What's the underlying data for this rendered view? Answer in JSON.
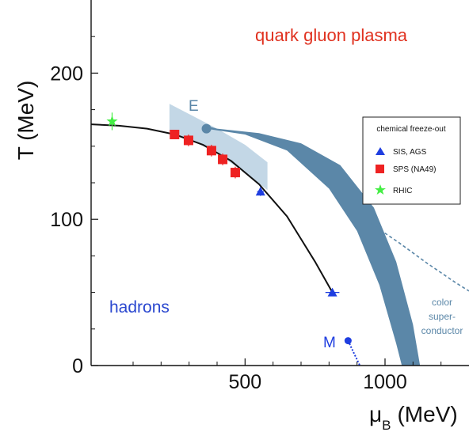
{
  "chart_data": {
    "type": "scatter",
    "title": "",
    "xlabel": "μ",
    "xlabel_sub": "B",
    "xlabel_unit": "(MeV)",
    "ylabel": "T (MeV)",
    "xlim": [
      -50,
      1300
    ],
    "ylim": [
      0,
      250
    ],
    "x_ticks": [
      500,
      1000
    ],
    "x_tick_labels": [
      "500",
      "1000"
    ],
    "y_ticks": [
      0,
      100,
      200
    ],
    "y_tick_labels": [
      "0",
      "100",
      "200"
    ],
    "grid": false,
    "legend": {
      "title": "chemical freeze-out",
      "placement": "right",
      "entries": [
        {
          "label": "SIS, AGS",
          "marker": "triangle",
          "color": "#1f3ee0"
        },
        {
          "label": "SPS (NA49)",
          "marker": "square",
          "color": "#ee2222"
        },
        {
          "label": "RHIC",
          "marker": "star",
          "color": "#44ee44"
        }
      ]
    },
    "series": [
      {
        "label_ref": 0,
        "marker": "triangle",
        "color": "#1f3ee0",
        "points": [
          {
            "x": 555,
            "y": 119,
            "xerr": 12,
            "yerr": 3
          },
          {
            "x": 812,
            "y": 50,
            "xerr": 25,
            "yerr": 2
          }
        ]
      },
      {
        "label_ref": 1,
        "marker": "square",
        "color": "#ee2222",
        "points": [
          {
            "x": 248,
            "y": 158,
            "xerr": 0,
            "yerr": 3
          },
          {
            "x": 298,
            "y": 154,
            "xerr": 0,
            "yerr": 4
          },
          {
            "x": 380,
            "y": 147,
            "xerr": 0,
            "yerr": 4
          },
          {
            "x": 420,
            "y": 141,
            "xerr": 0,
            "yerr": 4
          },
          {
            "x": 465,
            "y": 132,
            "xerr": 0,
            "yerr": 4
          }
        ]
      },
      {
        "label_ref": 2,
        "marker": "star",
        "color": "#44ee44",
        "points": [
          {
            "x": 25,
            "y": 167,
            "xerr": 0,
            "yerr": 6
          }
        ]
      }
    ],
    "freezeout_curve": {
      "color": "#111111",
      "x": [
        -50,
        50,
        150,
        250,
        350,
        450,
        550,
        650,
        750,
        812
      ],
      "y": [
        165,
        164,
        162,
        158,
        151,
        140,
        124,
        102,
        71,
        50
      ]
    },
    "crossover_band": {
      "color": "#bcd3e3",
      "upper_x": [
        230,
        300,
        400,
        500,
        580
      ],
      "upper_y": [
        179,
        172,
        162,
        151,
        139
      ],
      "lower_x": [
        580,
        500,
        400,
        300,
        230
      ],
      "lower_y": [
        120,
        132,
        145,
        155,
        160
      ]
    },
    "transition_band": {
      "color": "#5b87a8",
      "left_x": [
        360,
        500,
        650,
        800,
        900,
        980,
        1040,
        1060
      ],
      "left_y": [
        162,
        158,
        147,
        121,
        92,
        55,
        15,
        0
      ],
      "right_x": [
        1125,
        1100,
        1040,
        960,
        840,
        700,
        550,
        400,
        360
      ],
      "right_y": [
        0,
        28,
        71,
        108,
        137,
        152,
        159,
        162,
        164
      ]
    },
    "superconductor_boundary": {
      "color": "#5b87a8",
      "style": "dashed",
      "x": [
        950,
        1050,
        1150,
        1250,
        1300
      ],
      "y": [
        97,
        84,
        70,
        57,
        51
      ]
    },
    "nuclear_matter_line": {
      "color": "#1f3ee0",
      "style": "dotted",
      "x": [
        868,
        885,
        900,
        910
      ],
      "y": [
        17,
        10,
        4,
        0
      ]
    },
    "special_points": [
      {
        "label": "E",
        "x": 362,
        "y": 162,
        "color": "#5b87a8"
      },
      {
        "label": "M",
        "x": 868,
        "y": 17,
        "color": "#1f3ee0"
      }
    ],
    "annotations": [
      {
        "text": "quark gluon plasma",
        "color": "#e0311f"
      },
      {
        "text": "hadrons",
        "color": "#2a47cf"
      },
      {
        "text": "color",
        "color": "#5b87a8"
      },
      {
        "text": "super-",
        "color": "#5b87a8"
      },
      {
        "text": "conductor",
        "color": "#5b87a8"
      }
    ]
  }
}
